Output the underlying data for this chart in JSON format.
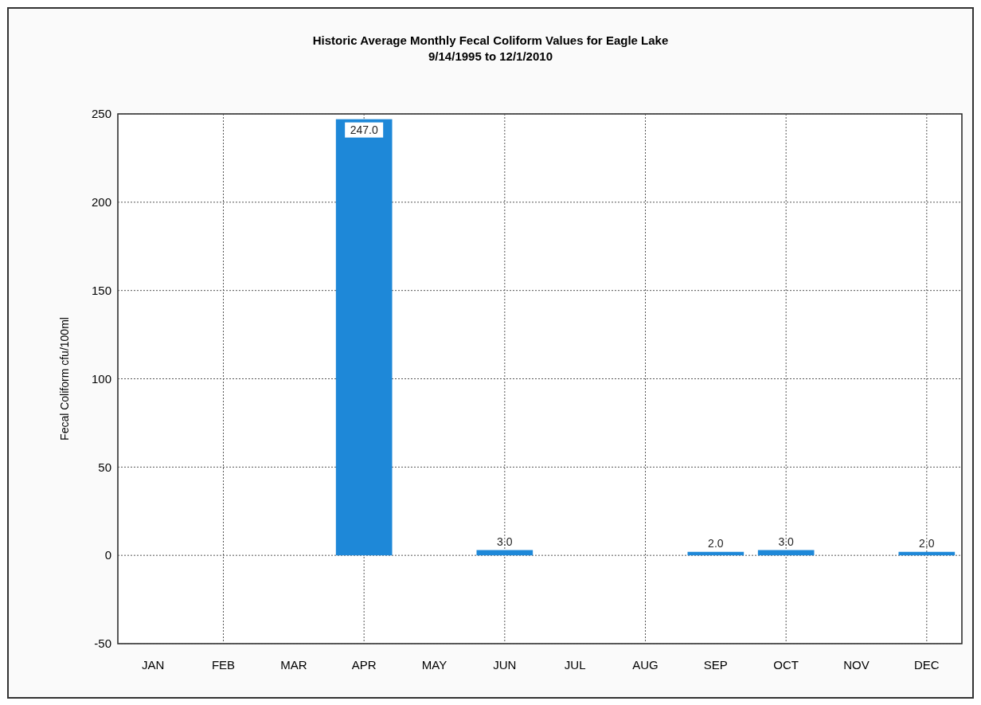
{
  "chart_data": {
    "type": "bar",
    "title": "Historic Average Monthly Fecal Coliform Values for Eagle Lake",
    "subtitle": "9/14/1995 to 12/1/2010",
    "ylabel": "Fecal Coliform cfu/100ml",
    "categories": [
      "JAN",
      "FEB",
      "MAR",
      "APR",
      "MAY",
      "JUN",
      "JUL",
      "AUG",
      "SEP",
      "OCT",
      "NOV",
      "DEC"
    ],
    "values": [
      null,
      null,
      null,
      247.0,
      null,
      3.0,
      null,
      null,
      2.0,
      3.0,
      null,
      2.0
    ],
    "value_labels": [
      null,
      null,
      null,
      "247.0",
      null,
      "3.0",
      null,
      null,
      "2.0",
      "3.0",
      null,
      "2.0"
    ],
    "color": "#1e88d8",
    "ylim": [
      -50,
      250
    ],
    "yticks": [
      -50,
      0,
      50,
      100,
      150,
      200,
      250
    ],
    "grid": true
  }
}
